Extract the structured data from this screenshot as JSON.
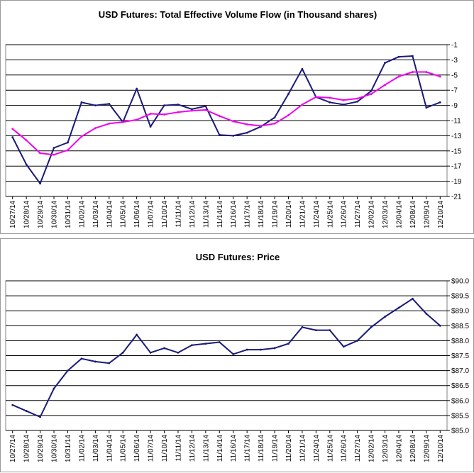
{
  "chart_data": [
    {
      "type": "line",
      "title": "USD Futures: Total Effective Volume Flow (in Thousand shares)",
      "xlabel": "",
      "ylabel": "",
      "ylim": [
        -21,
        -1
      ],
      "y_ticks": [
        -1,
        -3,
        -5,
        -7,
        -9,
        -11,
        -13,
        -15,
        -17,
        -19,
        -21
      ],
      "y_tick_labels": [
        "-1",
        "-3",
        "-5",
        "-7",
        "-9",
        "-11",
        "-13",
        "-15",
        "-17",
        "-19",
        "-21"
      ],
      "grid": "horizontal",
      "categories": [
        "10/27/14",
        "10/28/14",
        "10/29/14",
        "10/30/14",
        "10/31/14",
        "11/02/14",
        "11/03/14",
        "11/04/14",
        "11/05/14",
        "11/06/14",
        "11/07/14",
        "11/10/14",
        "11/11/14",
        "11/12/14",
        "11/13/14",
        "11/14/14",
        "11/16/14",
        "11/17/14",
        "11/18/14",
        "11/19/14",
        "11/20/14",
        "11/21/14",
        "11/24/14",
        "11/25/14",
        "11/26/14",
        "11/27/14",
        "12/02/14",
        "12/03/14",
        "12/04/14",
        "12/08/14",
        "12/09/14",
        "12/10/14"
      ],
      "series": [
        {
          "name": "",
          "color": "#1a1a7a",
          "values": [
            -13.2,
            -16.8,
            -19.3,
            -14.6,
            -13.9,
            -8.6,
            -9.0,
            -8.8,
            -11.2,
            -6.8,
            -11.8,
            -9.0,
            -8.9,
            -9.5,
            -9.1,
            -12.9,
            -13.0,
            -12.6,
            -11.8,
            -10.6,
            -7.5,
            -4.2,
            -7.9,
            -8.6,
            -8.9,
            -8.5,
            -7.1,
            -3.4,
            -2.6,
            -2.5,
            -9.3,
            -8.6
          ]
        },
        {
          "name": "",
          "color": "#ee00ee",
          "values": [
            -12.1,
            -13.6,
            -15.3,
            -15.5,
            -14.9,
            -13.1,
            -12.0,
            -11.4,
            -11.2,
            -10.9,
            -10.1,
            -10.2,
            -9.9,
            -9.7,
            -9.6,
            -10.4,
            -11.1,
            -11.5,
            -11.7,
            -11.4,
            -10.3,
            -8.9,
            -7.9,
            -8.0,
            -8.3,
            -8.1,
            -7.5,
            -6.3,
            -5.2,
            -4.6,
            -4.6,
            -5.2
          ]
        }
      ]
    },
    {
      "type": "line",
      "title": "USD Futures: Price",
      "xlabel": "",
      "ylabel": "",
      "ylim": [
        85.0,
        90.0
      ],
      "y_ticks": [
        90.0,
        89.5,
        89.0,
        88.5,
        88.0,
        87.5,
        87.0,
        86.5,
        86.0,
        85.5,
        85.0
      ],
      "y_tick_labels": [
        "$90.0",
        "$89.5",
        "$89.0",
        "$88.5",
        "$88.0",
        "$87.5",
        "$87.0",
        "$86.5",
        "$86.0",
        "$85.5",
        "$85.0"
      ],
      "grid": "horizontal",
      "categories": [
        "10/27/14",
        "10/28/14",
        "10/29/14",
        "10/30/14",
        "10/31/14",
        "11/02/14",
        "11/03/14",
        "11/04/14",
        "11/05/14",
        "11/06/14",
        "11/07/14",
        "11/10/14",
        "11/11/14",
        "11/12/14",
        "11/13/14",
        "11/14/14",
        "11/16/14",
        "11/17/14",
        "11/18/14",
        "11/19/14",
        "11/20/14",
        "11/21/14",
        "11/24/14",
        "11/25/14",
        "11/26/14",
        "11/27/14",
        "12/02/14",
        "12/03/14",
        "12/04/14",
        "12/08/14",
        "12/09/14",
        "12/10/14"
      ],
      "series": [
        {
          "name": "",
          "color": "#1a1a7a",
          "values": [
            85.85,
            85.65,
            85.45,
            86.4,
            87.0,
            87.4,
            87.3,
            87.25,
            87.6,
            88.2,
            87.6,
            87.75,
            87.6,
            87.85,
            87.9,
            87.95,
            87.55,
            87.7,
            87.7,
            87.75,
            87.9,
            88.45,
            88.35,
            88.35,
            87.8,
            88.0,
            88.45,
            88.8,
            89.1,
            89.4,
            88.9,
            88.5
          ]
        }
      ]
    }
  ]
}
